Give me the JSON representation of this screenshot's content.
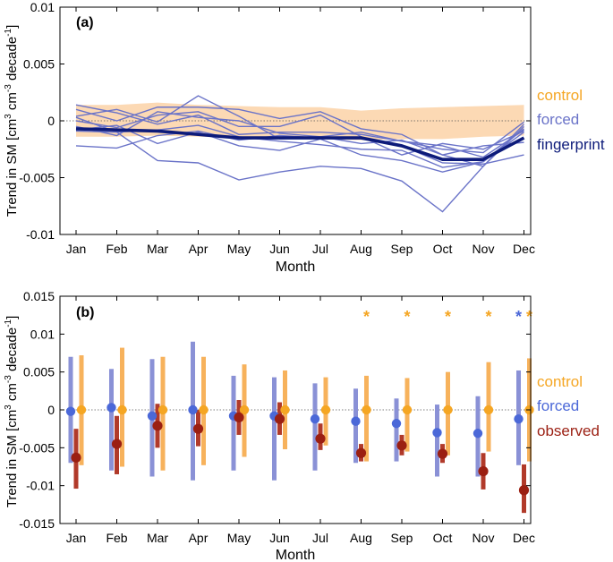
{
  "months": [
    "Jan",
    "Feb",
    "Mar",
    "Apr",
    "May",
    "Jun",
    "Jul",
    "Aug",
    "Sep",
    "Oct",
    "Nov",
    "Dec"
  ],
  "xlabel": "Month",
  "colors": {
    "control": "#f5a623",
    "control_band": "#fcd9b4",
    "forced": "#4b68d8",
    "forced_line": "#6a73c8",
    "forced_bar": "#8a91d6",
    "fingerprint": "#0d1b7a",
    "observed": "#9b1f12",
    "observed_bar": "#b13a2a"
  },
  "chart_data": [
    {
      "type": "line",
      "panel_label": "(a)",
      "ylabel": "Trend in SM [cm^3 cm^-3 decade^-1]",
      "ylabel_parts": [
        "Trend in SM [cm",
        "3",
        " cm",
        "-3",
        " decade",
        "-1",
        "]"
      ],
      "ylim": [
        -0.01,
        0.01
      ],
      "yticks": [
        -0.01,
        -0.005,
        0,
        0.005,
        0.01
      ],
      "ytick_labels": [
        "-0.01",
        "-0.005",
        "0",
        "0.005",
        "0.01"
      ],
      "legend": {
        "placement": "right",
        "entries": [
          "control",
          "forced",
          "fingerprint"
        ]
      },
      "control_band": {
        "upper": [
          0.0014,
          0.0014,
          0.0016,
          0.0014,
          0.0013,
          0.0012,
          0.0012,
          0.0009,
          0.0011,
          0.0012,
          0.0013,
          0.0014
        ],
        "lower": [
          -0.0014,
          -0.0014,
          -0.0013,
          -0.0014,
          -0.0015,
          -0.0016,
          -0.0016,
          -0.0017,
          -0.0016,
          -0.0016,
          -0.0014,
          -0.0013
        ]
      },
      "forced_members": [
        [
          0.0014,
          0.0007,
          -0.0003,
          0.0005,
          -0.0012,
          -0.001,
          -0.001,
          -0.0012,
          -0.0018,
          -0.0022,
          -0.0032,
          -0.0008
        ],
        [
          0.0004,
          0.001,
          -0.0001,
          0.0022,
          0.0004,
          -0.0016,
          -0.0014,
          -0.002,
          -0.0017,
          -0.003,
          -0.004,
          -0.0005
        ],
        [
          0.0003,
          -0.001,
          -0.0035,
          -0.0037,
          -0.0052,
          -0.0045,
          -0.004,
          -0.0042,
          -0.0053,
          -0.008,
          -0.004,
          -0.0003
        ],
        [
          -0.0008,
          -0.0004,
          -0.002,
          -0.001,
          -0.0022,
          -0.0026,
          -0.0016,
          -0.003,
          -0.0035,
          -0.0045,
          -0.0036,
          -0.0007
        ],
        [
          -0.0005,
          -0.0013,
          0.0008,
          0.0003,
          0.0,
          -0.0011,
          -0.0014,
          -0.001,
          -0.0018,
          -0.0025,
          -0.0028,
          -0.0001
        ],
        [
          -0.0022,
          -0.0024,
          -0.0013,
          -0.0009,
          -0.0017,
          -0.0013,
          -0.0015,
          -0.0015,
          -0.0022,
          -0.0037,
          -0.0038,
          -0.003
        ],
        [
          0.0,
          -0.0006,
          0.0005,
          0.0008,
          -0.0005,
          -0.0005,
          0.0005,
          -0.0014,
          -0.003,
          -0.002,
          -0.0025,
          -0.0009
        ],
        [
          -0.0009,
          -0.001,
          -0.0008,
          -0.0004,
          -0.0014,
          -0.0018,
          -0.0021,
          -0.0025,
          -0.0026,
          -0.0041,
          -0.0036,
          -0.001
        ],
        [
          0.001,
          0.0,
          0.0012,
          0.0012,
          0.001,
          0.0002,
          0.0008,
          -0.0007,
          -0.0012,
          -0.003,
          -0.0022,
          -0.0019
        ]
      ],
      "fingerprint": [
        -0.0007,
        -0.0008,
        -0.0009,
        -0.0012,
        -0.0015,
        -0.0015,
        -0.0015,
        -0.0015,
        -0.0022,
        -0.0034,
        -0.0034,
        -0.0015
      ]
    },
    {
      "type": "scatter",
      "panel_label": "(b)",
      "ylabel": "Trend in SM [cm^3 cm^-3 decade^-1]",
      "ylabel_parts": [
        "Trend in SM [cm",
        "3",
        " cm",
        "-3",
        " decade",
        "-1",
        "]"
      ],
      "ylim": [
        -0.015,
        0.015
      ],
      "yticks": [
        -0.015,
        -0.01,
        -0.005,
        0,
        0.005,
        0.01,
        0.015
      ],
      "ytick_labels": [
        "-0.015",
        "-0.01",
        "-0.005",
        "0",
        "0.005",
        "0.01",
        "0.015"
      ],
      "legend": {
        "placement": "right",
        "entries": [
          "control",
          "forced",
          "observed"
        ]
      },
      "series": [
        {
          "name": "forced",
          "values": [
            -0.0002,
            0.0003,
            -0.0008,
            0.0,
            -0.0008,
            -0.0008,
            -0.0012,
            -0.0015,
            -0.0018,
            -0.003,
            -0.0031,
            -0.0012
          ],
          "range_low": [
            -0.007,
            -0.008,
            -0.0088,
            -0.0093,
            -0.008,
            -0.0093,
            -0.008,
            -0.007,
            -0.0068,
            -0.0088,
            -0.0088,
            -0.0073
          ],
          "range_high": [
            0.007,
            0.0054,
            0.0067,
            0.009,
            0.0045,
            0.0043,
            0.0035,
            0.0028,
            0.0015,
            0.0007,
            0.0018,
            0.0052
          ]
        },
        {
          "name": "control",
          "values": [
            0,
            0,
            0,
            0,
            0,
            0,
            0,
            0,
            0,
            0,
            0,
            0
          ],
          "range_low": [
            -0.0073,
            -0.0075,
            -0.008,
            -0.0073,
            -0.0062,
            -0.0052,
            -0.0047,
            -0.0068,
            -0.0055,
            -0.006,
            -0.0055,
            -0.0068
          ],
          "range_high": [
            0.0072,
            0.0082,
            0.007,
            0.007,
            0.006,
            0.0052,
            0.0043,
            0.0045,
            0.0042,
            0.005,
            0.0063,
            0.0068
          ]
        },
        {
          "name": "observed",
          "values": [
            -0.0063,
            -0.0045,
            -0.0021,
            -0.0025,
            -0.001,
            -0.0012,
            -0.0038,
            -0.0057,
            -0.0047,
            -0.0058,
            -0.0081,
            -0.0106
          ],
          "range_low": [
            -0.0104,
            -0.0085,
            -0.005,
            -0.0048,
            -0.0033,
            -0.0033,
            -0.0053,
            -0.0068,
            -0.006,
            -0.007,
            -0.0105,
            -0.0136
          ],
          "range_high": [
            -0.0025,
            -0.0008,
            0.0008,
            0.0,
            0.0013,
            0.001,
            -0.0018,
            -0.0045,
            -0.0033,
            -0.0045,
            -0.0057,
            -0.0072
          ]
        }
      ],
      "significance_markers": [
        {
          "month": "Aug",
          "series": "control",
          "label": "*"
        },
        {
          "month": "Sep",
          "series": "control",
          "label": "*"
        },
        {
          "month": "Oct",
          "series": "control",
          "label": "*"
        },
        {
          "month": "Nov",
          "series": "control",
          "label": "*"
        },
        {
          "month": "Dec",
          "series": "forced",
          "label": "*"
        },
        {
          "month": "Dec",
          "series": "control",
          "label": "*"
        }
      ]
    }
  ]
}
